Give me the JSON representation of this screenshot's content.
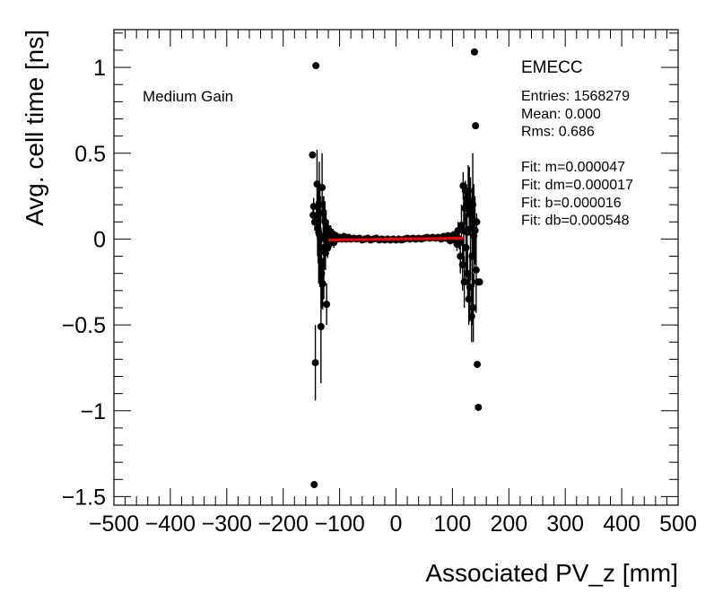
{
  "chart_data": {
    "type": "scatter",
    "title": "",
    "xlabel": "Associated PV_z [mm]",
    "ylabel": "Avg. cell time [ns]",
    "xlim": [
      -500,
      500
    ],
    "ylim": [
      -1.55,
      1.22
    ],
    "x_ticks": [
      -500,
      -400,
      -300,
      -200,
      -100,
      0,
      100,
      200,
      300,
      400,
      500
    ],
    "x_tick_labels": [
      "−500",
      "−400",
      "−300",
      "−200",
      "−100",
      "0",
      "100",
      "200",
      "300",
      "400",
      "500"
    ],
    "y_ticks": [
      1,
      0.5,
      0,
      -0.5,
      -1,
      -1.5
    ],
    "y_tick_labels": [
      "1",
      "0.5",
      "0",
      "−0.5",
      "−1",
      "−1.5"
    ],
    "annotation": "Medium Gain",
    "stats_box": {
      "name": "EMECC",
      "lines": [
        "Entries: 1568279",
        "Mean: 0.000",
        "Rms: 0.686",
        "",
        "Fit: m=0.000047",
        "Fit: dm=0.000017",
        "Fit: b=0.000016",
        "Fit: db=0.000548"
      ]
    },
    "fit_line": {
      "x": [
        -120,
        120
      ],
      "y": [
        -0.0056,
        0.0056
      ],
      "color": "#ff0000"
    },
    "series": [
      {
        "name": "profile",
        "color": "#000000",
        "points": [
          {
            "x": -148,
            "y": 0.49,
            "err": 0.02
          },
          {
            "x": -145,
            "y": -1.43,
            "err": 0.01
          },
          {
            "x": -143,
            "y": -0.72,
            "err": 0.22
          },
          {
            "x": -142,
            "y": 1.01,
            "err": 0.01
          },
          {
            "x": -147,
            "y": 0.14,
            "err": 0.06
          },
          {
            "x": -146,
            "y": 0.19,
            "err": 0.05
          },
          {
            "x": -144,
            "y": 0.1,
            "err": 0.05
          },
          {
            "x": -141,
            "y": 0.12,
            "err": 0.1
          },
          {
            "x": -140,
            "y": 0.32,
            "err": 0.2
          },
          {
            "x": -139,
            "y": 0.1,
            "err": 0.2
          },
          {
            "x": -138,
            "y": 0.06,
            "err": 0.2
          },
          {
            "x": -137,
            "y": 0.04,
            "err": 0.3
          },
          {
            "x": -136,
            "y": 0.2,
            "err": 0.25
          },
          {
            "x": -135,
            "y": 0.02,
            "err": 0.3
          },
          {
            "x": -134,
            "y": 0.0,
            "err": 0.25
          },
          {
            "x": -133,
            "y": -0.51,
            "err": 0.33
          },
          {
            "x": -132,
            "y": -0.2,
            "err": 0.2
          },
          {
            "x": -131,
            "y": 0.3,
            "err": 0.2
          },
          {
            "x": -130,
            "y": -0.26,
            "err": 0.15
          },
          {
            "x": -129,
            "y": 0.15,
            "err": 0.1
          },
          {
            "x": -128,
            "y": -0.05,
            "err": 0.3
          },
          {
            "x": -127,
            "y": 0.02,
            "err": 0.2
          },
          {
            "x": -126,
            "y": 0.1,
            "err": 0.12
          },
          {
            "x": -125,
            "y": -0.08,
            "err": 0.1
          },
          {
            "x": -124,
            "y": 0.05,
            "err": 0.12
          },
          {
            "x": -123,
            "y": -0.38,
            "err": 0.12
          },
          {
            "x": -122,
            "y": 0.02,
            "err": 0.08
          },
          {
            "x": -121,
            "y": -0.05,
            "err": 0.06
          },
          {
            "x": -120,
            "y": 0.06,
            "err": 0.05
          },
          {
            "x": -118,
            "y": -0.03,
            "err": 0.04
          },
          {
            "x": -116,
            "y": 0.04,
            "err": 0.04
          },
          {
            "x": -114,
            "y": 0.0,
            "err": 0.03
          },
          {
            "x": -112,
            "y": 0.03,
            "err": 0.03
          },
          {
            "x": -110,
            "y": -0.02,
            "err": 0.03
          },
          {
            "x": -107,
            "y": 0.02,
            "err": 0.02
          },
          {
            "x": -104,
            "y": 0.0,
            "err": 0.02
          },
          {
            "x": -100,
            "y": 0.01,
            "err": 0.02
          },
          {
            "x": -96,
            "y": 0.0,
            "err": 0.015
          },
          {
            "x": -92,
            "y": 0.015,
            "err": 0.015
          },
          {
            "x": -88,
            "y": 0.0,
            "err": 0.01
          },
          {
            "x": -84,
            "y": 0.01,
            "err": 0.01
          },
          {
            "x": -80,
            "y": 0.0,
            "err": 0.01
          },
          {
            "x": -75,
            "y": 0.005,
            "err": 0.01
          },
          {
            "x": -70,
            "y": 0.0,
            "err": 0.01
          },
          {
            "x": -65,
            "y": 0.005,
            "err": 0.01
          },
          {
            "x": -60,
            "y": -0.005,
            "err": 0.01
          },
          {
            "x": -55,
            "y": 0.0,
            "err": 0.01
          },
          {
            "x": -50,
            "y": 0.005,
            "err": 0.01
          },
          {
            "x": -45,
            "y": -0.005,
            "err": 0.01
          },
          {
            "x": -40,
            "y": 0.0,
            "err": 0.01
          },
          {
            "x": -35,
            "y": 0.005,
            "err": 0.01
          },
          {
            "x": -30,
            "y": -0.005,
            "err": 0.01
          },
          {
            "x": -25,
            "y": 0.0,
            "err": 0.01
          },
          {
            "x": -20,
            "y": -0.005,
            "err": 0.01
          },
          {
            "x": -15,
            "y": 0.0,
            "err": 0.01
          },
          {
            "x": -10,
            "y": -0.005,
            "err": 0.01
          },
          {
            "x": -5,
            "y": 0.0,
            "err": 0.01
          },
          {
            "x": 0,
            "y": -0.005,
            "err": 0.01
          },
          {
            "x": 5,
            "y": 0.0,
            "err": 0.01
          },
          {
            "x": 10,
            "y": -0.005,
            "err": 0.01
          },
          {
            "x": 15,
            "y": 0.0,
            "err": 0.01
          },
          {
            "x": 20,
            "y": 0.005,
            "err": 0.01
          },
          {
            "x": 25,
            "y": 0.0,
            "err": 0.01
          },
          {
            "x": 30,
            "y": 0.005,
            "err": 0.01
          },
          {
            "x": 35,
            "y": 0.0,
            "err": 0.01
          },
          {
            "x": 40,
            "y": 0.005,
            "err": 0.01
          },
          {
            "x": 45,
            "y": 0.0,
            "err": 0.01
          },
          {
            "x": 50,
            "y": 0.005,
            "err": 0.01
          },
          {
            "x": 55,
            "y": 0.01,
            "err": 0.01
          },
          {
            "x": 60,
            "y": 0.005,
            "err": 0.01
          },
          {
            "x": 65,
            "y": 0.01,
            "err": 0.01
          },
          {
            "x": 70,
            "y": 0.005,
            "err": 0.01
          },
          {
            "x": 75,
            "y": 0.01,
            "err": 0.012
          },
          {
            "x": 80,
            "y": 0.0,
            "err": 0.012
          },
          {
            "x": 84,
            "y": 0.015,
            "err": 0.015
          },
          {
            "x": 88,
            "y": 0.005,
            "err": 0.015
          },
          {
            "x": 92,
            "y": 0.02,
            "err": 0.02
          },
          {
            "x": 96,
            "y": -0.01,
            "err": 0.02
          },
          {
            "x": 100,
            "y": 0.02,
            "err": 0.025
          },
          {
            "x": 103,
            "y": 0.0,
            "err": 0.03
          },
          {
            "x": 106,
            "y": 0.03,
            "err": 0.03
          },
          {
            "x": 108,
            "y": -0.03,
            "err": 0.04
          },
          {
            "x": 110,
            "y": 0.05,
            "err": 0.05
          },
          {
            "x": 112,
            "y": 0.0,
            "err": 0.06
          },
          {
            "x": 114,
            "y": -0.1,
            "err": 0.1
          },
          {
            "x": 116,
            "y": 0.08,
            "err": 0.12
          },
          {
            "x": 118,
            "y": -0.15,
            "err": 0.15
          },
          {
            "x": 119,
            "y": 0.31,
            "err": 0.08
          },
          {
            "x": 120,
            "y": 0.05,
            "err": 0.2
          },
          {
            "x": 121,
            "y": -0.25,
            "err": 0.15
          },
          {
            "x": 122,
            "y": 0.18,
            "err": 0.1
          },
          {
            "x": 123,
            "y": 0.28,
            "err": 0.06
          },
          {
            "x": 124,
            "y": -0.05,
            "err": 0.2
          },
          {
            "x": 125,
            "y": 0.2,
            "err": 0.12
          },
          {
            "x": 126,
            "y": 0.04,
            "err": 0.25
          },
          {
            "x": 127,
            "y": -0.2,
            "err": 0.15
          },
          {
            "x": 128,
            "y": 0.28,
            "err": 0.15
          },
          {
            "x": 129,
            "y": -0.35,
            "err": 0.15
          },
          {
            "x": 130,
            "y": 0.22,
            "err": 0.2
          },
          {
            "x": 131,
            "y": -0.28,
            "err": 0.2
          },
          {
            "x": 132,
            "y": 0.06,
            "err": 0.3
          },
          {
            "x": 133,
            "y": 0.14,
            "err": 0.1
          },
          {
            "x": 134,
            "y": -0.45,
            "err": 0.15
          },
          {
            "x": 135,
            "y": -0.1,
            "err": 0.4
          },
          {
            "x": 136,
            "y": 0.2,
            "err": 0.3
          },
          {
            "x": 137,
            "y": -0.4,
            "err": 0.2
          },
          {
            "x": 138,
            "y": 0.02,
            "err": 0.3
          },
          {
            "x": 139,
            "y": 1.09,
            "err": 0.01
          },
          {
            "x": 140,
            "y": 0.05,
            "err": 0.2
          },
          {
            "x": 141,
            "y": 0.66,
            "err": 0.02
          },
          {
            "x": 142,
            "y": -0.18,
            "err": 0.25
          },
          {
            "x": 143,
            "y": 0.1,
            "err": 0.05
          },
          {
            "x": 144,
            "y": -0.73,
            "err": 0.01
          },
          {
            "x": 145,
            "y": -0.25,
            "err": 0.01
          },
          {
            "x": 146,
            "y": -0.98,
            "err": 0.01
          },
          {
            "x": 148,
            "y": -0.25,
            "err": 0.01
          }
        ]
      }
    ]
  }
}
